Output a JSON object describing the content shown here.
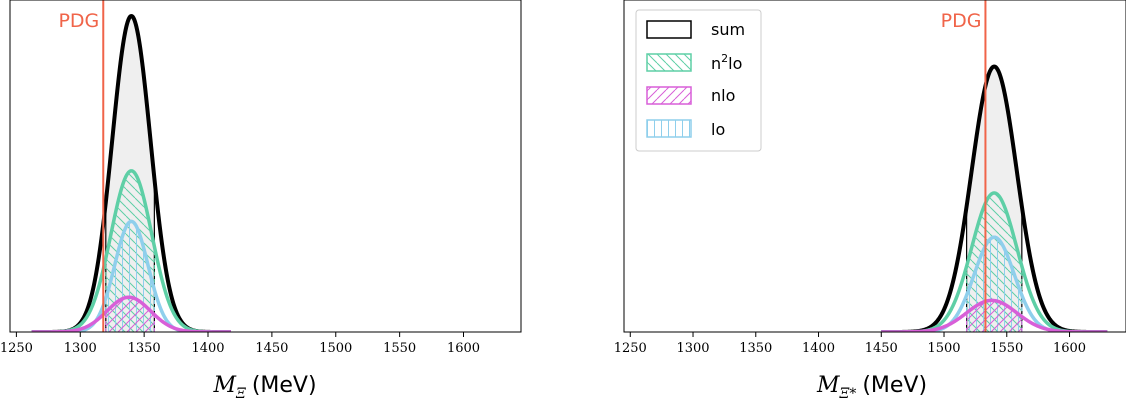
{
  "chart_data": [
    {
      "type": "area",
      "title": "",
      "xlabel": {
        "symbol": "M",
        "subscript": "Ξ",
        "unit": "(MeV)"
      },
      "ylabel": "",
      "xlim": [
        1245,
        1645
      ],
      "xticks": [
        1250,
        1300,
        1350,
        1400,
        1450,
        1500,
        1550,
        1600
      ],
      "grid": false,
      "y_ticks_shown": false,
      "reference_line": {
        "label": "PDG",
        "x": 1318,
        "color": "#f06449"
      },
      "interval": [
        1320,
        1358
      ],
      "series": [
        {
          "name": "sum",
          "mean": 1340,
          "sigma": 15,
          "peak": 1.0,
          "x_range": [
            1262,
            1418
          ]
        },
        {
          "name": "n2lo",
          "mean": 1340,
          "sigma": 16,
          "peak": 0.51,
          "x_range": [
            1262,
            1418
          ]
        },
        {
          "name": "nlo",
          "mean": 1338,
          "sigma": 17,
          "peak": 0.11,
          "x_range": [
            1262,
            1418
          ]
        },
        {
          "name": "lo",
          "mean": 1340,
          "sigma": 13,
          "peak": 0.35,
          "x_range": [
            1262,
            1418
          ]
        }
      ],
      "legend": null
    },
    {
      "type": "area",
      "title": "",
      "xlabel": {
        "symbol": "M",
        "subscript": "Ξ*",
        "unit": "(MeV)"
      },
      "ylabel": "",
      "xlim": [
        1245,
        1645
      ],
      "xticks": [
        1250,
        1300,
        1350,
        1400,
        1450,
        1500,
        1550,
        1600
      ],
      "grid": false,
      "y_ticks_shown": false,
      "reference_line": {
        "label": "PDG",
        "x": 1533,
        "color": "#f06449"
      },
      "interval": [
        1518,
        1562
      ],
      "series": [
        {
          "name": "sum",
          "mean": 1540,
          "sigma": 18,
          "peak": 0.84,
          "x_range": [
            1450,
            1630
          ]
        },
        {
          "name": "n2lo",
          "mean": 1540,
          "sigma": 18,
          "peak": 0.44,
          "x_range": [
            1450,
            1630
          ]
        },
        {
          "name": "nlo",
          "mean": 1538,
          "sigma": 20,
          "peak": 0.1,
          "x_range": [
            1450,
            1630
          ]
        },
        {
          "name": "lo",
          "mean": 1540,
          "sigma": 16,
          "peak": 0.3,
          "x_range": [
            1450,
            1630
          ]
        }
      ],
      "legend": {
        "placement": "top-left",
        "entries": [
          {
            "key": "sum",
            "text": "sum"
          },
          {
            "key": "n2lo",
            "text": "n",
            "sup": "2",
            "suffix": "lo"
          },
          {
            "key": "nlo",
            "text": "nlo"
          },
          {
            "key": "lo",
            "text": "lo"
          }
        ]
      }
    }
  ],
  "style": {
    "colors": {
      "sum": "#000000",
      "sum_fill": "#efefef",
      "n2lo": "#5ecfa6",
      "nlo": "#d85fd8",
      "lo": "#8fcfec",
      "reference": "#f06449"
    },
    "hatch": {
      "n2lo": "backslash",
      "nlo": "slash",
      "lo": "vertical"
    }
  }
}
